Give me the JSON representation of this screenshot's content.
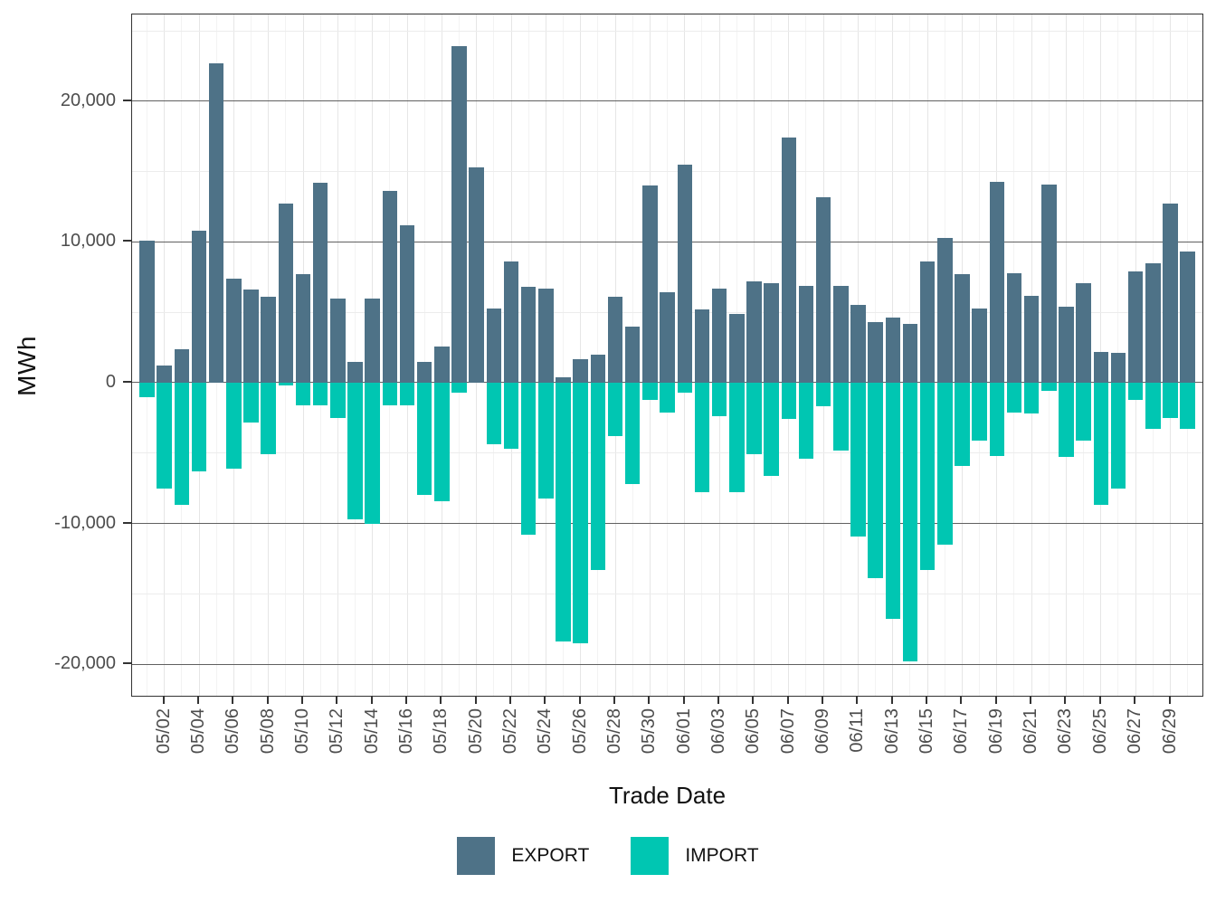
{
  "y_axis": {
    "title": "MWh",
    "ticks": [
      {
        "value": 20000,
        "label": "20,000"
      },
      {
        "value": 10000,
        "label": "10,000"
      },
      {
        "value": 0,
        "label": "0"
      },
      {
        "value": -10000,
        "label": "-10,000"
      },
      {
        "value": -20000,
        "label": "-20,000"
      }
    ]
  },
  "x_axis": {
    "title": "Trade Date",
    "tick_labels": [
      "05/02",
      "05/04",
      "05/06",
      "05/08",
      "05/10",
      "05/12",
      "05/14",
      "05/16",
      "05/18",
      "05/20",
      "05/22",
      "05/24",
      "05/26",
      "05/28",
      "05/30",
      "06/01",
      "06/03",
      "06/05",
      "06/07",
      "06/09",
      "06/11",
      "06/13",
      "06/15",
      "06/17",
      "06/19",
      "06/21",
      "06/23",
      "06/25",
      "06/27",
      "06/29"
    ]
  },
  "legend": {
    "items": [
      {
        "label": "EXPORT",
        "color": "#4E7287"
      },
      {
        "label": "IMPORT",
        "color": "#00C6B2"
      }
    ]
  },
  "chart_data": {
    "type": "bar",
    "title": "",
    "xlabel": "Trade Date",
    "ylabel": "MWh",
    "ylim": [
      -22370,
      26160
    ],
    "grid": {
      "major_every": 10000,
      "minor_every": 5000,
      "major_color": "#606060",
      "minor_color": "#ececec"
    },
    "legend_position": "bottom-center",
    "x": [
      "05/01",
      "05/02",
      "05/03",
      "05/04",
      "05/05",
      "05/06",
      "05/07",
      "05/08",
      "05/09",
      "05/10",
      "05/11",
      "05/12",
      "05/13",
      "05/14",
      "05/15",
      "05/16",
      "05/17",
      "05/18",
      "05/19",
      "05/20",
      "05/21",
      "05/22",
      "05/23",
      "05/24",
      "05/25",
      "05/26",
      "05/27",
      "05/28",
      "05/29",
      "05/30",
      "05/31",
      "06/01",
      "06/02",
      "06/03",
      "06/04",
      "06/05",
      "06/06",
      "06/07",
      "06/08",
      "06/09",
      "06/10",
      "06/11",
      "06/12",
      "06/13",
      "06/14",
      "06/15",
      "06/16",
      "06/17",
      "06/18",
      "06/19",
      "06/20",
      "06/21",
      "06/22",
      "06/23",
      "06/24",
      "06/25",
      "06/26",
      "06/27",
      "06/28",
      "06/29",
      "06/30"
    ],
    "series": [
      {
        "name": "EXPORT",
        "color": "#4E7287",
        "values": [
          10100,
          1200,
          2400,
          10800,
          22700,
          7400,
          6600,
          6100,
          12700,
          7700,
          14200,
          6000,
          1500,
          6000,
          13600,
          11200,
          1500,
          2600,
          23900,
          15300,
          5300,
          8600,
          6800,
          6700,
          400,
          1700,
          2000,
          6100,
          4000,
          14000,
          6400,
          15500,
          5200,
          6700,
          4900,
          7200,
          7100,
          17400,
          6900,
          13200,
          6900,
          5500,
          4300,
          4600,
          4200,
          8600,
          10300,
          7700,
          5300,
          14300,
          7800,
          6200,
          14100,
          5400,
          7100,
          2200,
          2100,
          7900,
          8500,
          12700,
          9300
        ]
      },
      {
        "name": "IMPORT",
        "color": "#00C6B2",
        "values": [
          -1000,
          -7500,
          -8700,
          -6300,
          0,
          -6100,
          -2800,
          -5100,
          -200,
          -1600,
          -1600,
          -2500,
          -9700,
          -10000,
          -1600,
          -1600,
          -8000,
          -8400,
          -700,
          0,
          -4400,
          -4700,
          -10800,
          -8200,
          -18400,
          -18500,
          -13300,
          -3800,
          -7200,
          -1200,
          -2100,
          -700,
          -7800,
          -2400,
          -7800,
          -5100,
          -6600,
          -2600,
          -5400,
          -1700,
          -4800,
          -10900,
          -13900,
          -16800,
          -19800,
          -13300,
          -11500,
          -5900,
          -4100,
          -5200,
          -2100,
          -2200,
          -600,
          -5300,
          -4100,
          -8700,
          -7500,
          -1200,
          -3300,
          -2500,
          -3300
        ]
      }
    ]
  }
}
